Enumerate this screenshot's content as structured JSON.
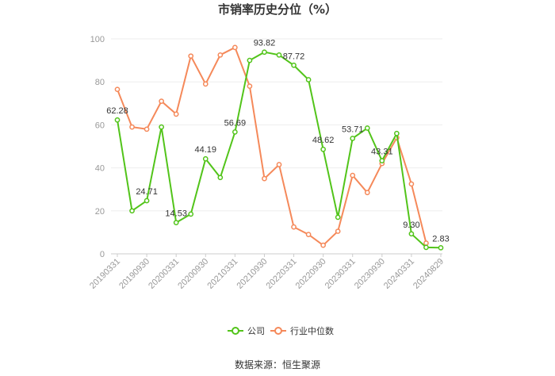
{
  "chart_data": {
    "type": "line",
    "title": "市销率历史分位（%）",
    "xlabel": "",
    "ylabel": "",
    "ylim": [
      0,
      100
    ],
    "yticks": [
      0,
      20,
      40,
      60,
      80,
      100
    ],
    "x": [
      "20190331",
      "20190630",
      "20190930",
      "20191231",
      "20200331",
      "20200630",
      "20200930",
      "20201231",
      "20210331",
      "20210630",
      "20210930",
      "20211231",
      "20220331",
      "20220630",
      "20220930",
      "20221231",
      "20230331",
      "20230630",
      "20230930",
      "20231231",
      "20240331",
      "20240630",
      "20240829"
    ],
    "xtick_labels": [
      "20190331",
      "20190930",
      "20200331",
      "20200930",
      "20210331",
      "20210930",
      "20220331",
      "20220930",
      "20230331",
      "20230930",
      "20240331",
      "20240829"
    ],
    "grid": true,
    "legend_position": "bottom",
    "series": [
      {
        "name": "公司",
        "color": "#52c41a",
        "values": [
          62.28,
          20.0,
          24.71,
          59.0,
          14.53,
          18.5,
          44.19,
          35.5,
          56.69,
          90.0,
          93.82,
          92.5,
          87.72,
          81.0,
          48.62,
          17.0,
          53.71,
          58.5,
          43.31,
          56.0,
          9.3,
          3.0,
          2.83
        ],
        "labels": [
          "62.28",
          "",
          "24.71",
          "",
          "14.53",
          "",
          "44.19",
          "",
          "56.69",
          "",
          "93.82",
          "",
          "87.72",
          "",
          "48.62",
          "",
          "53.71",
          "",
          "43.31",
          "",
          "9.30",
          "",
          "2.83"
        ]
      },
      {
        "name": "行业中位数",
        "color": "#f5895a",
        "values": [
          76.5,
          59.0,
          58.0,
          71.0,
          65.0,
          92.0,
          79.0,
          92.5,
          96.0,
          78.0,
          35.0,
          41.5,
          12.5,
          9.0,
          4.0,
          10.5,
          36.5,
          28.5,
          42.0,
          54.0,
          32.5,
          5.0,
          null
        ]
      }
    ]
  },
  "footer": {
    "source": "数据来源：恒生聚源"
  }
}
